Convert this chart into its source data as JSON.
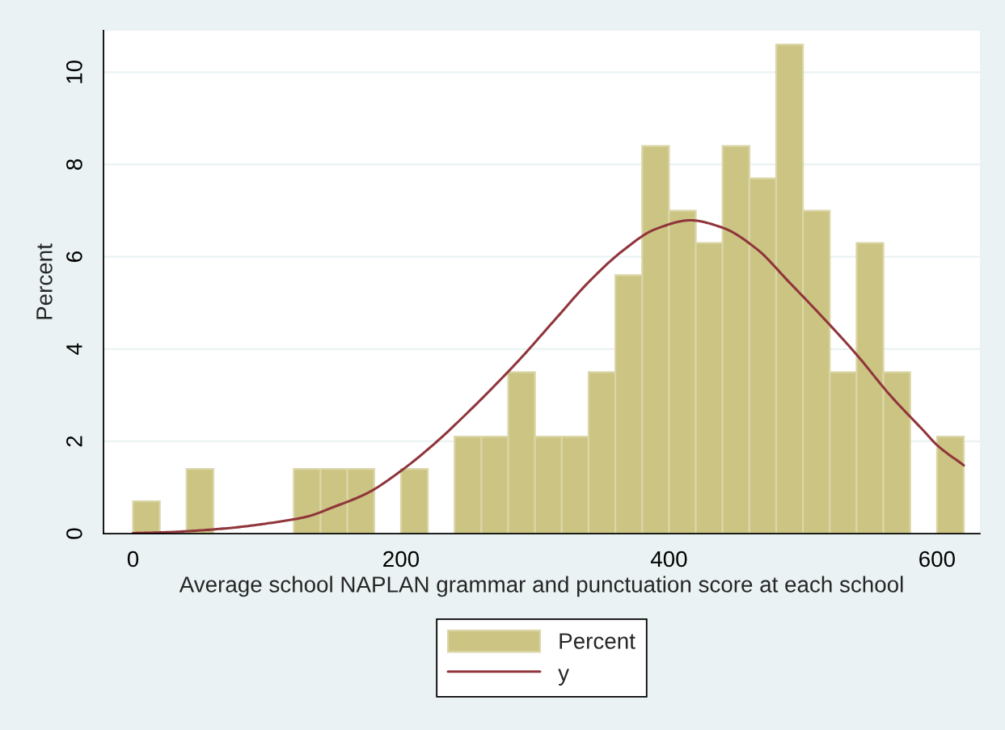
{
  "chart_data": {
    "type": "histogram",
    "xlabel": "Average school NAPLAN grammar and punctuation score at each school",
    "ylabel": "Percent",
    "bins": [
      0,
      20,
      40,
      60,
      80,
      100,
      120,
      140,
      160,
      180,
      200,
      220,
      240,
      260,
      280,
      300,
      320,
      340,
      360,
      380,
      400,
      420,
      440,
      460,
      480,
      500,
      520,
      540,
      560,
      580,
      600,
      620
    ],
    "series": [
      {
        "name": "Percent",
        "color": "#cbc482",
        "values": [
          0.7,
          0,
          1.4,
          0,
          0,
          0,
          1.4,
          1.4,
          1.4,
          0,
          1.4,
          0,
          2.1,
          2.1,
          3.5,
          2.1,
          2.1,
          3.5,
          5.6,
          8.4,
          7.0,
          6.3,
          8.4,
          7.7,
          10.6,
          7.0,
          3.5,
          6.3,
          3.5,
          0,
          2.1
        ]
      },
      {
        "name": "y",
        "type": "line",
        "color": "#90353b",
        "x": [
          0,
          25,
          50,
          75,
          100,
          130,
          150,
          175,
          200,
          225,
          250,
          275,
          290,
          315,
          340,
          365,
          390,
          416,
          440,
          465,
          490,
          515,
          540,
          565,
          590,
          600,
          620
        ],
        "values": [
          0.01,
          0.03,
          0.07,
          0.13,
          0.22,
          0.37,
          0.58,
          0.88,
          1.36,
          1.95,
          2.63,
          3.36,
          3.82,
          4.64,
          5.45,
          6.12,
          6.6,
          6.79,
          6.63,
          6.18,
          5.44,
          4.68,
          3.88,
          3.0,
          2.23,
          1.92,
          1.48
        ]
      }
    ],
    "xlim": [
      -22,
      632
    ],
    "ylim": [
      0,
      10.9
    ],
    "xticks": [
      0,
      200,
      400,
      600
    ],
    "yticks": [
      0,
      2,
      4,
      6,
      8,
      10
    ],
    "grid": "y",
    "legend": "bottom",
    "line_style": "solid"
  }
}
